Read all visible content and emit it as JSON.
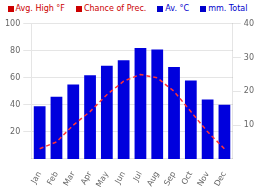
{
  "chart_data": {
    "type": "bar",
    "categories": [
      "Jan",
      "Feb",
      "Mar",
      "Apr",
      "May",
      "Jun",
      "Jul",
      "Aug",
      "Sep",
      "Oct",
      "Nov",
      "Dec"
    ],
    "series": [
      {
        "type": "bar",
        "color": "#0000dd",
        "values": [
          39,
          46,
          55,
          62,
          69,
          73,
          82,
          81,
          68,
          58,
          44,
          40
        ]
      },
      {
        "type": "line",
        "color": "#ff3333",
        "line_style": "dashed",
        "axis": "y2",
        "values": [
          3,
          5,
          10,
          14,
          19,
          23,
          25,
          24,
          20,
          14,
          8,
          3
        ]
      }
    ],
    "ylim": [
      0,
      100
    ],
    "yticks": [
      20,
      40,
      60,
      80,
      100
    ],
    "y2lim": [
      0,
      40
    ],
    "y2ticks": [
      10,
      20,
      30,
      40
    ],
    "grid": true,
    "annotations": [
      {
        "text": "Avg. High °F",
        "color": "#cc0000"
      },
      {
        "text": "Chance of Prec.",
        "color": "#cc0000"
      },
      {
        "text": "Av. °C",
        "color": "#0000cc"
      },
      {
        "text": "mm. Total",
        "color": "#0000cc"
      }
    ]
  }
}
